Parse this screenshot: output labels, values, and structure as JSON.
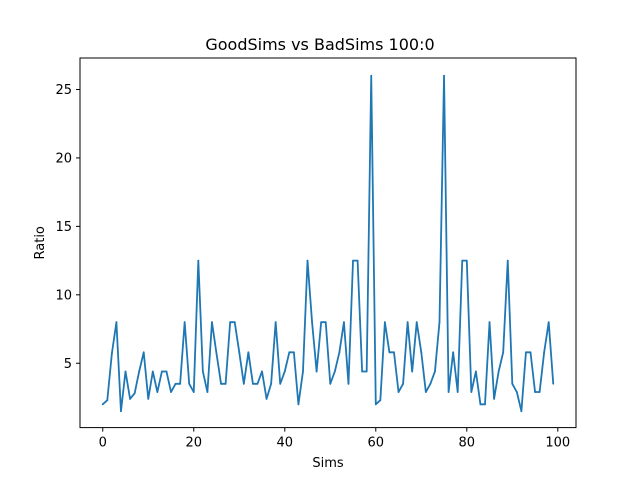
{
  "chart_data": {
    "type": "line",
    "title": "GoodSims vs BadSims 100:0",
    "xlabel": "Sims",
    "ylabel": "Ratio",
    "xlim": [
      -5,
      104
    ],
    "ylim": [
      0.3,
      27.3
    ],
    "xticks": [
      0,
      20,
      40,
      60,
      80,
      100
    ],
    "yticks": [
      5,
      10,
      15,
      20,
      25
    ],
    "grid": false,
    "color": "#1f77b4",
    "series": [
      {
        "x": [
          0,
          1,
          2,
          3,
          4,
          5,
          6,
          7,
          8,
          9,
          10,
          11,
          12,
          13,
          14,
          15,
          16,
          17,
          18,
          19,
          20,
          21,
          22,
          23,
          24,
          25,
          26,
          27,
          28,
          29,
          30,
          31,
          32,
          33,
          34,
          35,
          36,
          37,
          38,
          39,
          40,
          41,
          42,
          43,
          44,
          45,
          46,
          47,
          48,
          49,
          50,
          51,
          52,
          53,
          54,
          55,
          56,
          57,
          58,
          59,
          60,
          61,
          62,
          63,
          64,
          65,
          66,
          67,
          68,
          69,
          70,
          71,
          72,
          73,
          74,
          75,
          76,
          77,
          78,
          79,
          80,
          81,
          82,
          83,
          84,
          85,
          86,
          87,
          88,
          89,
          90,
          91,
          92,
          93,
          94,
          95,
          96,
          97,
          98,
          99
        ],
        "y": [
          2.0,
          2.3,
          5.7,
          8.0,
          1.5,
          4.4,
          2.4,
          2.8,
          4.4,
          5.8,
          2.4,
          4.4,
          2.9,
          4.4,
          4.4,
          2.9,
          3.5,
          3.5,
          8.0,
          3.5,
          2.9,
          12.5,
          4.4,
          2.9,
          8.0,
          5.7,
          3.5,
          3.5,
          8.0,
          8.0,
          5.8,
          3.5,
          5.8,
          3.5,
          3.5,
          4.4,
          2.4,
          3.5,
          8.0,
          3.5,
          4.4,
          5.8,
          5.8,
          2.0,
          4.4,
          12.5,
          8.0,
          4.4,
          8.0,
          8.0,
          3.5,
          4.4,
          5.8,
          8.0,
          3.5,
          12.5,
          12.5,
          4.4,
          4.4,
          26.0,
          2.0,
          2.3,
          8.0,
          5.8,
          5.8,
          2.9,
          3.5,
          8.0,
          4.4,
          8.0,
          5.8,
          2.9,
          3.5,
          4.4,
          8.0,
          26.0,
          2.9,
          5.8,
          2.9,
          12.5,
          12.5,
          2.9,
          4.4,
          2.0,
          2.0,
          8.0,
          2.4,
          4.4,
          5.8,
          12.5,
          3.5,
          2.9,
          1.5,
          5.8,
          5.8,
          2.9,
          2.9,
          5.8,
          8.0,
          3.5
        ]
      }
    ]
  }
}
